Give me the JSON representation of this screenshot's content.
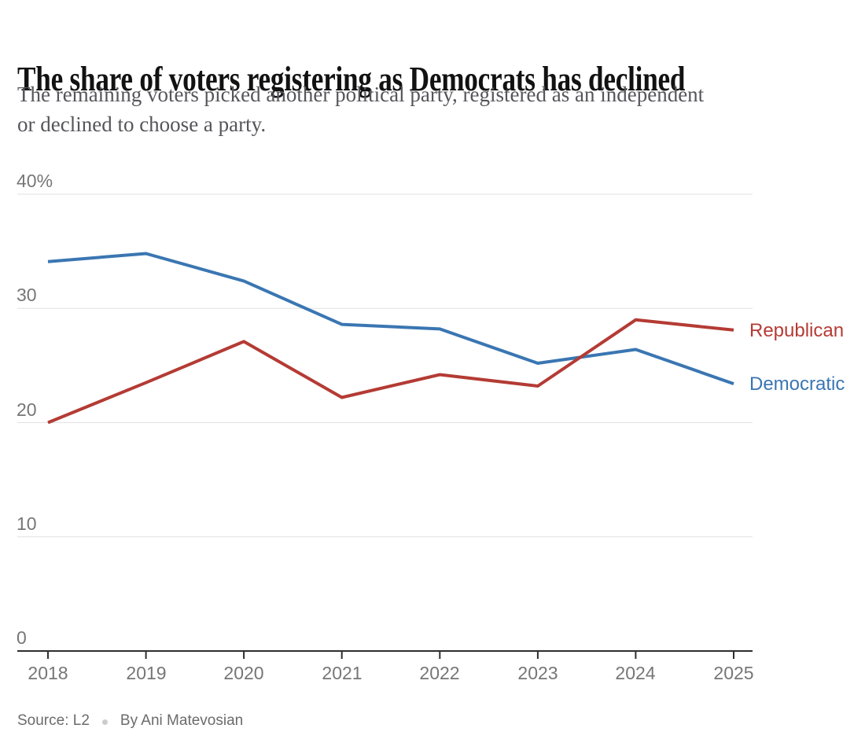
{
  "header": {
    "title": "The share of voters registering as Democrats has declined",
    "subtitle_line1": "The remaining voters picked another political party, registered as an independent",
    "subtitle_line2": "or declined to choose a party."
  },
  "chart_data": {
    "type": "line",
    "x": [
      2018,
      2019,
      2020,
      2021,
      2022,
      2023,
      2024,
      2025
    ],
    "series": [
      {
        "name": "Democratic",
        "color": "#3a76b2",
        "values": [
          34.1,
          34.8,
          32.4,
          28.6,
          28.2,
          25.2,
          26.4,
          23.4
        ]
      },
      {
        "name": "Republican",
        "color": "#b43b34",
        "values": [
          20.0,
          23.5,
          27.1,
          22.2,
          24.2,
          23.2,
          29.0,
          28.1
        ]
      }
    ],
    "ylim": [
      0,
      40
    ],
    "yticks": [
      {
        "value": 40,
        "label": "40%"
      },
      {
        "value": 30,
        "label": "30"
      },
      {
        "value": 20,
        "label": "20"
      },
      {
        "value": 10,
        "label": "10"
      },
      {
        "value": 0,
        "label": "0"
      }
    ],
    "grid": true,
    "legend_position": "right-of-line-ends",
    "line_label_republican": "Republican",
    "line_label_democratic": "Democratic",
    "gridline_color": "#e2e2e2",
    "axis_color": "#2e2e2e"
  },
  "source": {
    "label": "Source: L2",
    "separator_icon": "dot",
    "byline": "By Ani Matevosian"
  }
}
